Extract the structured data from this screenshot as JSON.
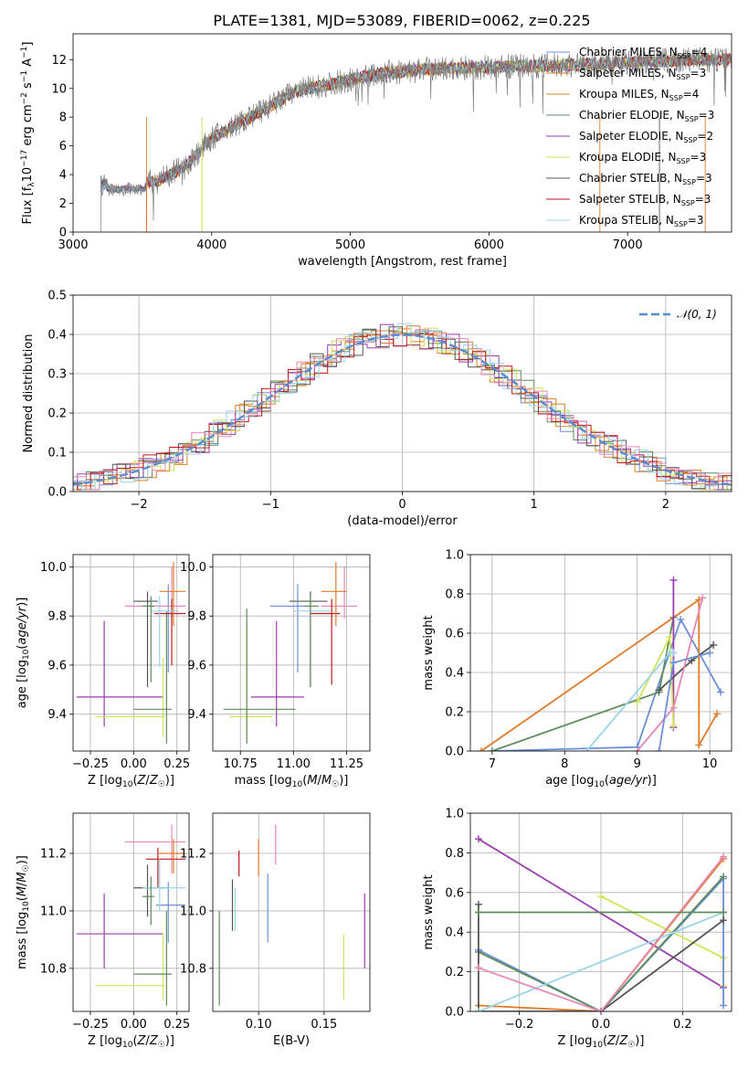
{
  "figure_title": "PLATE=1381, MJD=53089, FIBERID=0062, z=0.225",
  "colors": {
    "chabrier_miles": "#6b8fd8",
    "salpeter_miles": "#e07b2a",
    "kroupa_miles": "#d38a1e",
    "chabrier_elodie": "#5e8c5c",
    "salpeter_elodie": "#9a3eb0",
    "kroupa_elodie": "#cfe35a",
    "chabrier_stelib": "#555555",
    "salpeter_stelib": "#c0181c",
    "kroupa_stelib": "#9ad5e8",
    "pink": "#e787b3",
    "data": "#808080",
    "gaussian": "#5b8bd1"
  },
  "chart_data": [
    {
      "id": "spectrum",
      "type": "line",
      "title": "PLATE=1381, MJD=53089, FIBERID=0062, z=0.225",
      "xlabel": "wavelength [Angstrom, rest frame]",
      "ylabel": "Flux [f_λ10^-17 erg cm^-2 s^-1 A^-1]",
      "xlim": [
        3000,
        7750
      ],
      "ylim": [
        0,
        13.8
      ],
      "xticks": [
        "3000",
        "4000",
        "5000",
        "6000",
        "7000"
      ],
      "yticks": [
        "0",
        "2",
        "4",
        "6",
        "8",
        "10",
        "12"
      ],
      "legend_position": "right",
      "legend": [
        {
          "imf": "Chabrier",
          "lib": "MILES",
          "nssp": "4"
        },
        {
          "imf": "Salpeter",
          "lib": "MILES",
          "nssp": "3"
        },
        {
          "imf": "Kroupa",
          "lib": "MILES",
          "nssp": "4"
        },
        {
          "imf": "Chabrier",
          "lib": "ELODIE",
          "nssp": "3"
        },
        {
          "imf": "Salpeter",
          "lib": "ELODIE",
          "nssp": "2"
        },
        {
          "imf": "Kroupa",
          "lib": "ELODIE",
          "nssp": "3"
        },
        {
          "imf": "Chabrier",
          "lib": "STELIB",
          "nssp": "3"
        },
        {
          "imf": "Salpeter",
          "lib": "STELIB",
          "nssp": "3"
        },
        {
          "imf": "Kroupa",
          "lib": "STELIB",
          "nssp": "3"
        }
      ],
      "trend_x": [
        3200,
        3400,
        3600,
        3800,
        4000,
        4200,
        4400,
        4600,
        4800,
        5000,
        5200,
        5500,
        6000,
        6500,
        7000,
        7500
      ],
      "trend_y": [
        3.2,
        3.4,
        3.5,
        4.5,
        6.5,
        7.6,
        8.6,
        9.8,
        10.2,
        10.6,
        11.0,
        11.3,
        11.5,
        11.6,
        11.8,
        12.0
      ],
      "grid": false
    },
    {
      "id": "residuals",
      "type": "area",
      "xlabel": "(data-model)/error",
      "ylabel": "Normed distribution",
      "xlim": [
        -2.5,
        2.5
      ],
      "ylim": [
        0,
        0.5
      ],
      "xticks": [
        "−2",
        "−1",
        "0",
        "1",
        "2"
      ],
      "yticks": [
        "0.0",
        "0.1",
        "0.2",
        "0.3",
        "0.4",
        "0.5"
      ],
      "legend": "N(0,1)",
      "legend_position": "upper right",
      "grid": true
    },
    {
      "id": "age_vs_Z",
      "type": "scatter",
      "xlabel": "Z [log10(Z/Z☉)]",
      "ylabel": "age  [log10(age/yr)]",
      "xlim": [
        -0.35,
        0.32
      ],
      "ylim": [
        9.25,
        10.05
      ],
      "xticks": [
        "−0.25",
        "0.00",
        "0.25"
      ],
      "yticks": [
        "9.4",
        "9.6",
        "9.8",
        "10.0"
      ],
      "points": [
        {
          "c": "salpeter_elodie",
          "x": -0.17,
          "xl": -0.33,
          "xh": 0.17,
          "y": 9.47,
          "yl": 9.35,
          "yh": 9.78
        },
        {
          "c": "kroupa_elodie",
          "x": 0.17,
          "xl": -0.22,
          "xh": 0.18,
          "y": 9.39,
          "yl": 9.31,
          "yh": 9.63
        },
        {
          "c": "chabrier_elodie",
          "x": 0.19,
          "xl": -0.0,
          "xh": 0.22,
          "y": 9.42,
          "yl": 9.28,
          "yh": 9.82
        },
        {
          "c": "chabrier_stelib",
          "x": 0.08,
          "xl": 0.0,
          "xh": 0.14,
          "y": 9.86,
          "yl": 9.51,
          "yh": 9.9
        },
        {
          "c": "chabrier_miles",
          "x": 0.2,
          "xl": 0.07,
          "xh": 0.3,
          "y": 9.84,
          "yl": 9.57,
          "yh": 9.93
        },
        {
          "c": "pink",
          "x": 0.22,
          "xl": -0.05,
          "xh": 0.3,
          "y": 9.84,
          "yl": 9.79,
          "yh": 10.0
        },
        {
          "c": "salpeter_stelib",
          "x": 0.22,
          "xl": 0.12,
          "xh": 0.3,
          "y": 9.81,
          "yl": 9.6,
          "yh": 9.87
        },
        {
          "c": "salpeter_miles",
          "x": 0.23,
          "xl": 0.15,
          "xh": 0.3,
          "y": 9.9,
          "yl": 9.76,
          "yh": 10.02
        },
        {
          "c": "kroupa_stelib",
          "x": 0.15,
          "xl": 0.1,
          "xh": 0.26,
          "y": 9.82,
          "yl": 9.59,
          "yh": 9.88
        },
        {
          "c": "chabrier_elodie",
          "x": 0.1,
          "xl": 0.05,
          "xh": 0.12,
          "y": 9.84,
          "yl": 9.53,
          "yh": 9.88
        }
      ],
      "grid": true
    },
    {
      "id": "age_vs_mass",
      "type": "scatter",
      "xlabel": "mass [log10(M/M☉)]",
      "ylabel": "",
      "xlim": [
        10.62,
        11.36
      ],
      "ylim": [
        9.25,
        10.05
      ],
      "xticks": [
        "10.75",
        "11.00",
        "11.25"
      ],
      "yticks": [
        "9.4",
        "9.6",
        "9.8",
        "10.0"
      ],
      "points": [
        {
          "c": "salpeter_elodie",
          "x": 10.92,
          "xl": 10.8,
          "xh": 11.05,
          "y": 9.47,
          "yl": 9.35,
          "yh": 9.78
        },
        {
          "c": "kroupa_elodie",
          "x": 10.78,
          "xl": 10.7,
          "xh": 10.9,
          "y": 9.39,
          "yl": 9.31,
          "yh": 9.76
        },
        {
          "c": "chabrier_elodie",
          "x": 10.78,
          "xl": 10.67,
          "xh": 11.01,
          "y": 9.42,
          "yl": 9.28,
          "yh": 9.83
        },
        {
          "c": "chabrier_stelib",
          "x": 11.08,
          "xl": 10.98,
          "xh": 11.16,
          "y": 9.86,
          "yl": 9.51,
          "yh": 9.9
        },
        {
          "c": "chabrier_miles",
          "x": 11.02,
          "xl": 10.89,
          "xh": 11.1,
          "y": 9.84,
          "yl": 9.57,
          "yh": 9.93
        },
        {
          "c": "pink",
          "x": 11.24,
          "xl": 11.13,
          "xh": 11.3,
          "y": 9.84,
          "yl": 9.79,
          "yh": 10.0
        },
        {
          "c": "salpeter_stelib",
          "x": 11.18,
          "xl": 11.08,
          "xh": 11.22,
          "y": 9.81,
          "yl": 9.52,
          "yh": 9.87
        },
        {
          "c": "salpeter_miles",
          "x": 11.2,
          "xl": 11.13,
          "xh": 11.25,
          "y": 9.9,
          "yl": 9.76,
          "yh": 10.02
        },
        {
          "c": "kroupa_stelib",
          "x": 11.08,
          "xl": 11.0,
          "xh": 11.18,
          "y": 9.82,
          "yl": 9.59,
          "yh": 9.88
        },
        {
          "c": "chabrier_elodie",
          "x": 11.08,
          "xl": 11.05,
          "xh": 11.12,
          "y": 9.84,
          "yl": 9.51,
          "yh": 9.88
        }
      ],
      "grid": true
    },
    {
      "id": "weight_vs_age",
      "type": "line",
      "xlabel": "age  [log10(age/yr)]",
      "ylabel": "mass weight",
      "xlim": [
        6.7,
        10.3
      ],
      "ylim": [
        0,
        1
      ],
      "xticks": [
        "7",
        "8",
        "9",
        "10"
      ],
      "yticks": [
        "0.0",
        "0.2",
        "0.4",
        "0.6",
        "0.8",
        "1.0"
      ],
      "series": [
        {
          "c": "chabrier_miles",
          "x": [
            7.0,
            9.0,
            9.6,
            10.15
          ],
          "y": [
            0.0,
            0.02,
            0.67,
            0.3
          ]
        },
        {
          "c": "salpeter_miles",
          "x": [
            6.85,
            9.85,
            9.85,
            10.1
          ],
          "y": [
            0.0,
            0.77,
            0.03,
            0.19
          ]
        },
        {
          "c": "chabrier_elodie",
          "x": [
            7.0,
            9.3,
            9.5
          ],
          "y": [
            0.0,
            0.3,
            0.68
          ]
        },
        {
          "c": "salpeter_elodie",
          "x": [
            9.5,
            9.5
          ],
          "y": [
            0.12,
            0.87
          ]
        },
        {
          "c": "kroupa_elodie",
          "x": [
            9.0,
            9.45,
            9.5
          ],
          "y": [
            0.25,
            0.58,
            0.13
          ]
        },
        {
          "c": "chabrier_stelib",
          "x": [
            9.3,
            9.75,
            10.05
          ],
          "y": [
            0.31,
            0.46,
            0.54
          ]
        },
        {
          "c": "kroupa_stelib",
          "x": [
            8.3,
            9.45,
            9.5
          ],
          "y": [
            0.0,
            0.5,
            0.5
          ]
        },
        {
          "c": "pink",
          "x": [
            9.0,
            9.5,
            9.9
          ],
          "y": [
            0.0,
            0.22,
            0.78
          ]
        },
        {
          "c": "chabrier_miles",
          "x": [
            9.3,
            9.5,
            10.0
          ],
          "y": [
            0.0,
            0.45,
            0.5
          ]
        }
      ],
      "grid": true
    },
    {
      "id": "mass_vs_Z",
      "type": "scatter",
      "xlabel": "Z [log10(Z/Z☉)]",
      "ylabel": "mass [log10(M/M☉)]",
      "xlim": [
        -0.35,
        0.32
      ],
      "ylim": [
        10.65,
        11.34
      ],
      "xticks": [
        "−0.25",
        "0.00",
        "0.25"
      ],
      "yticks": [
        "10.8",
        "11.0",
        "11.2"
      ],
      "points": [
        {
          "c": "salpeter_elodie",
          "x": -0.17,
          "xl": -0.33,
          "xh": 0.17,
          "y": 10.92,
          "yl": 10.8,
          "yh": 11.06
        },
        {
          "c": "kroupa_elodie",
          "x": 0.17,
          "xl": -0.22,
          "xh": 0.18,
          "y": 10.74,
          "yl": 10.69,
          "yh": 10.92
        },
        {
          "c": "chabrier_elodie",
          "x": 0.19,
          "xl": -0.0,
          "xh": 0.22,
          "y": 10.78,
          "yl": 10.67,
          "yh": 11.0
        },
        {
          "c": "chabrier_stelib",
          "x": 0.08,
          "xl": 0.0,
          "xh": 0.2,
          "y": 11.08,
          "yl": 10.98,
          "yh": 11.16
        },
        {
          "c": "chabrier_miles",
          "x": 0.2,
          "xl": 0.13,
          "xh": 0.3,
          "y": 11.02,
          "yl": 10.89,
          "yh": 11.1
        },
        {
          "c": "pink",
          "x": 0.22,
          "xl": -0.05,
          "xh": 0.3,
          "y": 11.24,
          "yl": 11.13,
          "yh": 11.3
        },
        {
          "c": "salpeter_stelib",
          "x": 0.14,
          "xl": 0.07,
          "xh": 0.3,
          "y": 11.18,
          "yl": 11.08,
          "yh": 11.22
        },
        {
          "c": "salpeter_miles",
          "x": 0.23,
          "xl": 0.14,
          "xh": 0.3,
          "y": 11.2,
          "yl": 11.13,
          "yh": 11.25
        },
        {
          "c": "kroupa_stelib",
          "x": 0.15,
          "xl": 0.05,
          "xh": 0.3,
          "y": 11.08,
          "yl": 11.0,
          "yh": 11.18
        },
        {
          "c": "chabrier_elodie",
          "x": 0.1,
          "xl": 0.05,
          "xh": 0.12,
          "y": 11.05,
          "yl": 10.95,
          "yh": 11.12
        }
      ],
      "grid": true
    },
    {
      "id": "mass_vs_ebv",
      "type": "scatter",
      "xlabel": "E(B-V)",
      "ylabel": "",
      "xlim": [
        0.065,
        0.185
      ],
      "ylim": [
        10.65,
        11.34
      ],
      "xticks": [
        "0.10",
        "0.15"
      ],
      "yticks": [
        "10.8",
        "11.0",
        "11.2"
      ],
      "points": [
        {
          "c": "chabrier_elodie",
          "x": 0.07,
          "yl": 10.67,
          "yh": 11.0
        },
        {
          "c": "chabrier_stelib",
          "x": 0.08,
          "yl": 10.93,
          "yh": 11.11
        },
        {
          "c": "kroupa_stelib",
          "x": 0.082,
          "yl": 10.93,
          "yh": 11.08
        },
        {
          "c": "salpeter_stelib",
          "x": 0.085,
          "yl": 11.12,
          "yh": 11.21
        },
        {
          "c": "salpeter_miles",
          "x": 0.1,
          "yl": 11.12,
          "yh": 11.25
        },
        {
          "c": "chabrier_miles",
          "x": 0.107,
          "yl": 10.89,
          "yh": 11.13
        },
        {
          "c": "pink",
          "x": 0.113,
          "yl": 11.16,
          "yh": 11.3
        },
        {
          "c": "kroupa_elodie",
          "x": 0.165,
          "yl": 10.69,
          "yh": 10.92
        },
        {
          "c": "salpeter_elodie",
          "x": 0.181,
          "yl": 10.8,
          "yh": 11.06
        }
      ],
      "grid": true
    },
    {
      "id": "weight_vs_Z",
      "type": "line",
      "xlabel": "Z [log10(Z/Z☉)]",
      "ylabel": "mass weight",
      "xlim": [
        -0.32,
        0.32
      ],
      "ylim": [
        0,
        1
      ],
      "xticks": [
        "−0.2",
        "0.0",
        "0.2"
      ],
      "yticks": [
        "0.0",
        "0.2",
        "0.4",
        "0.6",
        "0.8",
        "1.0"
      ],
      "series": [
        {
          "c": "salpeter_elodie",
          "x": [
            -0.3,
            0.3
          ],
          "y": [
            0.87,
            0.12
          ]
        },
        {
          "c": "kroupa_elodie",
          "x": [
            0.0,
            0.3,
            0.3
          ],
          "y": [
            0.58,
            0.27,
            0.13
          ]
        },
        {
          "c": "salpeter_miles",
          "x": [
            -0.3,
            0.0,
            0.3
          ],
          "y": [
            0.03,
            0.0,
            0.77
          ]
        },
        {
          "c": "chabrier_miles",
          "x": [
            -0.3,
            0.0,
            0.3,
            0.3
          ],
          "y": [
            0.31,
            0.0,
            0.67,
            0.03
          ]
        },
        {
          "c": "chabrier_elodie",
          "x": [
            -0.3,
            0.0,
            0.3
          ],
          "y": [
            0.3,
            0.0,
            0.68
          ]
        },
        {
          "c": "chabrier_stelib",
          "x": [
            -0.3,
            -0.3,
            0.0,
            0.3
          ],
          "y": [
            0.54,
            0.0,
            0.0,
            0.46
          ]
        },
        {
          "c": "kroupa_stelib",
          "x": [
            -0.3,
            0.3
          ],
          "y": [
            0.0,
            0.5
          ]
        },
        {
          "c": "pink",
          "x": [
            -0.3,
            0.0,
            0.3
          ],
          "y": [
            0.22,
            0.0,
            0.78
          ]
        },
        {
          "c": "chabrier_elodie",
          "x": [
            -0.3,
            0.3
          ],
          "y": [
            0.5,
            0.5
          ]
        }
      ],
      "grid": true
    }
  ]
}
